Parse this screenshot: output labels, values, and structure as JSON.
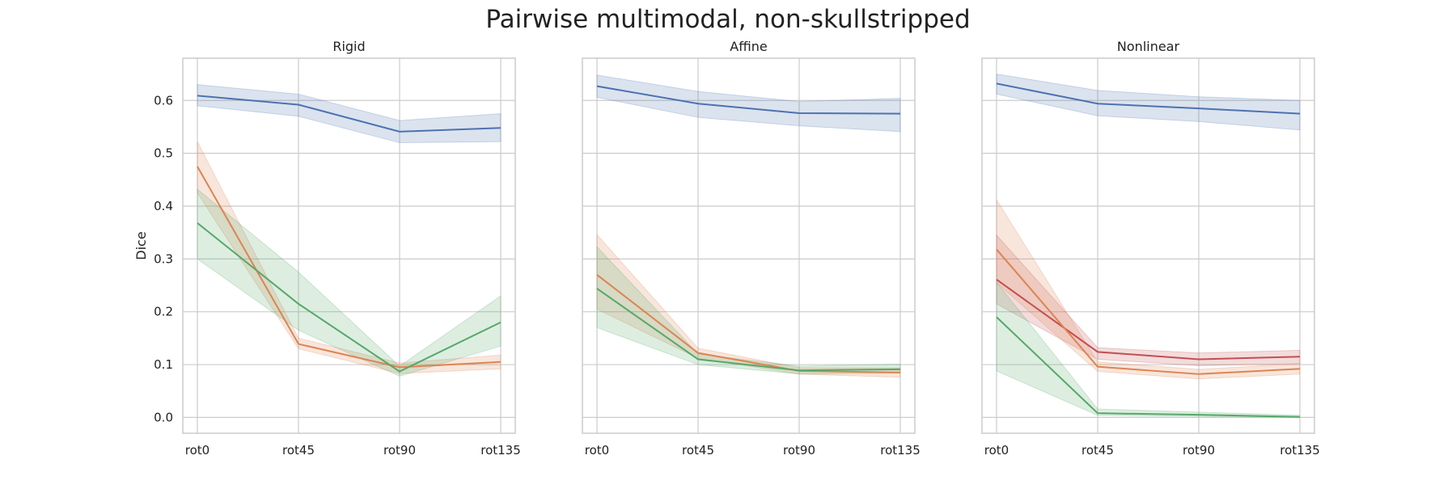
{
  "figure": {
    "title": "Pairwise multimodal, non-skullstripped"
  },
  "colors": {
    "blue": "#4c72b0",
    "orange": "#dd8452",
    "green": "#55a868",
    "red": "#c44e52"
  },
  "chart_data": [
    {
      "type": "line",
      "title": "Rigid",
      "xlabel": "",
      "ylabel": "Dice",
      "categories": [
        "rot0",
        "rot45",
        "rot90",
        "rot135"
      ],
      "ylim": [
        -0.03,
        0.68
      ],
      "yticks": [
        "0.0",
        "0.1",
        "0.2",
        "0.3",
        "0.4",
        "0.5",
        "0.6"
      ],
      "grid": true,
      "series": [
        {
          "color": "blue",
          "values": [
            0.609,
            0.592,
            0.541,
            0.548
          ],
          "lower": [
            0.59,
            0.57,
            0.52,
            0.522
          ],
          "upper": [
            0.63,
            0.612,
            0.562,
            0.575
          ]
        },
        {
          "color": "orange",
          "values": [
            0.475,
            0.139,
            0.095,
            0.105
          ],
          "lower": [
            0.425,
            0.13,
            0.083,
            0.092
          ],
          "upper": [
            0.522,
            0.15,
            0.103,
            0.118
          ]
        },
        {
          "color": "green",
          "values": [
            0.368,
            0.215,
            0.087,
            0.18
          ],
          "lower": [
            0.3,
            0.165,
            0.078,
            0.135
          ],
          "upper": [
            0.432,
            0.275,
            0.097,
            0.23
          ]
        }
      ]
    },
    {
      "type": "line",
      "title": "Affine",
      "xlabel": "",
      "ylabel": "",
      "categories": [
        "rot0",
        "rot45",
        "rot90",
        "rot135"
      ],
      "ylim": [
        -0.03,
        0.68
      ],
      "yticks": [],
      "grid": true,
      "series": [
        {
          "color": "blue",
          "values": [
            0.627,
            0.594,
            0.576,
            0.575
          ],
          "lower": [
            0.606,
            0.568,
            0.552,
            0.541
          ],
          "upper": [
            0.648,
            0.617,
            0.598,
            0.604
          ]
        },
        {
          "color": "orange",
          "values": [
            0.27,
            0.122,
            0.088,
            0.085
          ],
          "lower": [
            0.205,
            0.112,
            0.082,
            0.076
          ],
          "upper": [
            0.346,
            0.131,
            0.094,
            0.094
          ]
        },
        {
          "color": "green",
          "values": [
            0.244,
            0.11,
            0.089,
            0.091
          ],
          "lower": [
            0.17,
            0.1,
            0.082,
            0.084
          ],
          "upper": [
            0.323,
            0.12,
            0.097,
            0.101
          ]
        }
      ]
    },
    {
      "type": "line",
      "title": "Nonlinear",
      "xlabel": "",
      "ylabel": "",
      "categories": [
        "rot0",
        "rot45",
        "rot90",
        "rot135"
      ],
      "ylim": [
        -0.03,
        0.68
      ],
      "yticks": [],
      "grid": true,
      "series": [
        {
          "color": "blue",
          "values": [
            0.632,
            0.594,
            0.585,
            0.575
          ],
          "lower": [
            0.612,
            0.571,
            0.56,
            0.544
          ],
          "upper": [
            0.65,
            0.619,
            0.607,
            0.6
          ]
        },
        {
          "color": "red",
          "values": [
            0.261,
            0.124,
            0.11,
            0.115
          ],
          "lower": [
            0.215,
            0.11,
            0.098,
            0.102
          ],
          "upper": [
            0.345,
            0.132,
            0.122,
            0.127
          ]
        },
        {
          "color": "orange",
          "values": [
            0.318,
            0.096,
            0.082,
            0.092
          ],
          "lower": [
            0.255,
            0.087,
            0.073,
            0.082
          ],
          "upper": [
            0.412,
            0.105,
            0.091,
            0.102
          ]
        },
        {
          "color": "green",
          "values": [
            0.19,
            0.008,
            0.005,
            0.001
          ],
          "lower": [
            0.088,
            0.004,
            0.002,
            0.0
          ],
          "upper": [
            0.256,
            0.016,
            0.01,
            0.004
          ]
        }
      ]
    }
  ]
}
